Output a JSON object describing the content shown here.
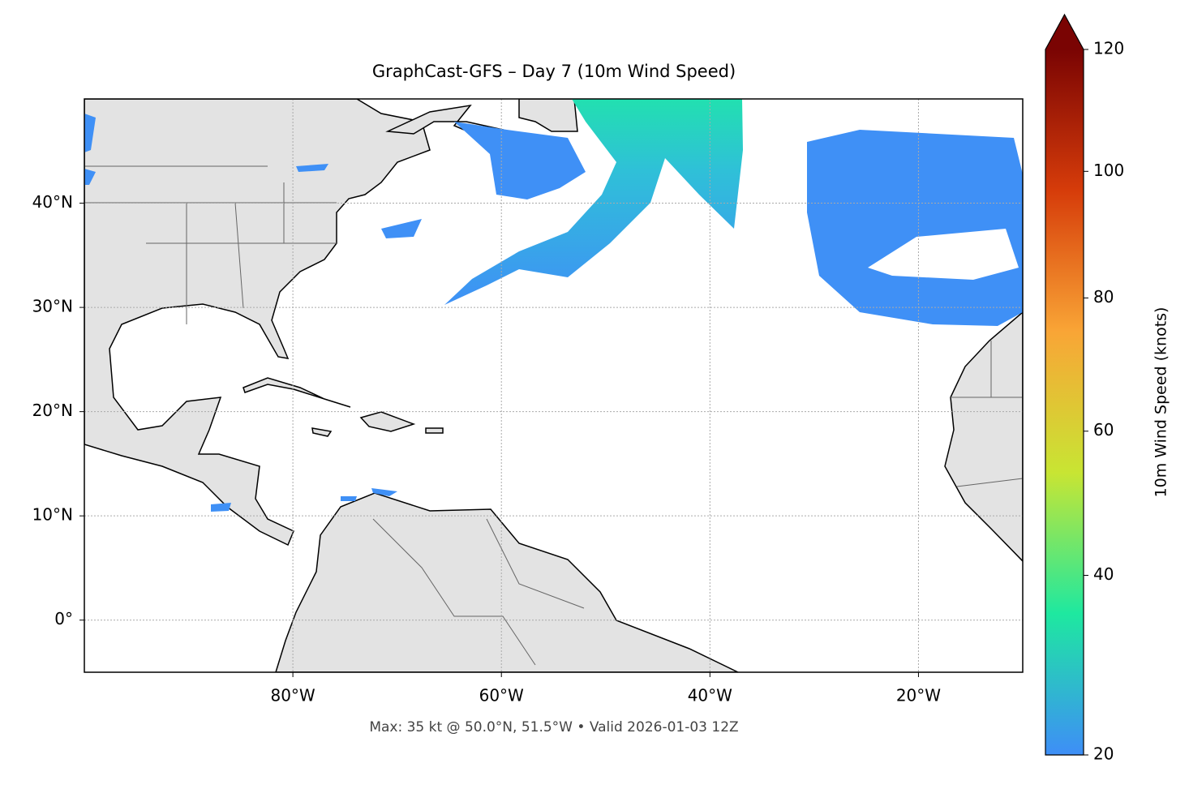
{
  "map": {
    "title": "GraphCast-GFS – Day 7 (10m Wind Speed)",
    "xlim": [
      -100,
      -10
    ],
    "ylim": [
      -5,
      50
    ],
    "xticks": [
      {
        "value": -80,
        "label": "80°W"
      },
      {
        "value": -60,
        "label": "60°W"
      },
      {
        "value": -40,
        "label": "40°W"
      },
      {
        "value": -20,
        "label": "20°W"
      }
    ],
    "yticks": [
      {
        "value": 0,
        "label": "0°"
      },
      {
        "value": 10,
        "label": "10°N"
      },
      {
        "value": 20,
        "label": "20°N"
      },
      {
        "value": 30,
        "label": "30°N"
      },
      {
        "value": 40,
        "label": "40°N"
      }
    ],
    "grid": true,
    "footnote": "Max: 35 kt @ 50.0°N, 51.5°W • Valid 2026-01-03 12Z"
  },
  "colorbar": {
    "label": "10m Wind Speed (knots)",
    "lim": [
      20,
      120
    ],
    "ticks": [
      20,
      40,
      60,
      80,
      100,
      120
    ],
    "power_norm_gamma": 0.85,
    "extend": "max",
    "colors": [
      "#3e8ef7",
      "#1ee8a0",
      "#c8e533",
      "#f9a536",
      "#d63c0a",
      "#7a0403"
    ]
  }
}
